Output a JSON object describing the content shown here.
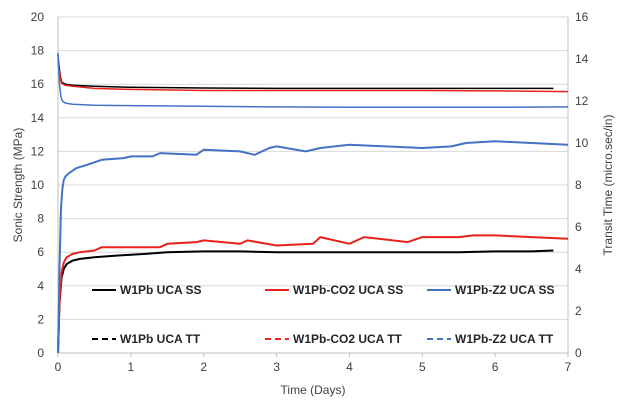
{
  "chart_data": {
    "type": "line",
    "title": "",
    "xlabel": "Time (Days)",
    "ylabel": "Sonic Strength (MPa)",
    "y2label": "Transit Time (micro.sec/in)",
    "xlim": [
      0,
      7
    ],
    "ylim": [
      0,
      20
    ],
    "y2lim": [
      0,
      16
    ],
    "x_ticks": [
      0,
      1,
      2,
      3,
      4,
      5,
      6,
      7
    ],
    "y_ticks": [
      0,
      2,
      4,
      6,
      8,
      10,
      12,
      14,
      16,
      18,
      20
    ],
    "y2_ticks": [
      0,
      2,
      4,
      6,
      8,
      10,
      12,
      14,
      16
    ],
    "grid": "horizontal",
    "legend_position": "bottom-inside",
    "series": [
      {
        "name": "W1Pb UCA SS",
        "axis": "left",
        "color": "#000000",
        "dash": "solid",
        "x": [
          0,
          0.02,
          0.05,
          0.08,
          0.12,
          0.2,
          0.3,
          0.5,
          0.8,
          1.0,
          1.2,
          1.5,
          2.0,
          2.5,
          3.0,
          3.5,
          4.0,
          4.5,
          5.0,
          5.5,
          6.0,
          6.5,
          6.8
        ],
        "y": [
          0,
          3.0,
          4.5,
          5.0,
          5.3,
          5.5,
          5.6,
          5.7,
          5.8,
          5.85,
          5.9,
          6.0,
          6.05,
          6.05,
          6.0,
          6.0,
          6.0,
          6.0,
          6.0,
          6.0,
          6.05,
          6.05,
          6.1
        ]
      },
      {
        "name": "W1Pb-CO2 UCA SS",
        "axis": "left",
        "color": "#e8221b",
        "dash": "solid",
        "x": [
          0,
          0.02,
          0.05,
          0.08,
          0.12,
          0.2,
          0.3,
          0.5,
          0.6,
          1.0,
          1.4,
          1.5,
          1.9,
          2.0,
          2.5,
          2.6,
          3.0,
          3.5,
          3.6,
          4.0,
          4.2,
          4.8,
          5.0,
          5.5,
          5.7,
          6.0,
          6.5,
          7.0
        ],
        "y": [
          0,
          3.2,
          4.8,
          5.4,
          5.7,
          5.9,
          6.0,
          6.1,
          6.3,
          6.3,
          6.3,
          6.5,
          6.6,
          6.7,
          6.5,
          6.7,
          6.4,
          6.5,
          6.9,
          6.5,
          6.9,
          6.6,
          6.9,
          6.9,
          7.0,
          7.0,
          6.9,
          6.8
        ]
      },
      {
        "name": "W1Pb-Z2 UCA SS",
        "axis": "left",
        "color": "#4472c4",
        "dash": "solid",
        "x": [
          0,
          0.02,
          0.04,
          0.06,
          0.08,
          0.1,
          0.15,
          0.25,
          0.4,
          0.6,
          0.9,
          1.0,
          1.3,
          1.4,
          1.9,
          2.0,
          2.5,
          2.7,
          2.9,
          3.0,
          3.4,
          3.6,
          4.0,
          4.5,
          5.0,
          5.4,
          5.6,
          6.0,
          6.5,
          7.0
        ],
        "y": [
          0,
          5.0,
          8.5,
          9.8,
          10.3,
          10.5,
          10.7,
          11.0,
          11.2,
          11.5,
          11.6,
          11.7,
          11.7,
          11.9,
          11.8,
          12.1,
          12.0,
          11.8,
          12.2,
          12.3,
          12.0,
          12.2,
          12.4,
          12.3,
          12.2,
          12.3,
          12.5,
          12.6,
          12.5,
          12.4
        ]
      },
      {
        "name": "W1Pb UCA TT",
        "axis": "right",
        "color": "#000000",
        "dash": "dashed",
        "x": [
          0,
          0.01,
          0.03,
          0.05,
          0.1,
          0.2,
          0.5,
          1.0,
          2.0,
          3.0,
          4.0,
          5.0,
          6.0,
          6.8
        ],
        "y": [
          14.2,
          13.8,
          13.2,
          12.9,
          12.8,
          12.75,
          12.7,
          12.65,
          12.62,
          12.6,
          12.6,
          12.6,
          12.6,
          12.6
        ]
      },
      {
        "name": "W1Pb-CO2 UCA TT",
        "axis": "right",
        "color": "#e8221b",
        "dash": "dashed",
        "x": [
          0,
          0.01,
          0.03,
          0.05,
          0.1,
          0.2,
          0.5,
          1.0,
          2.0,
          3.0,
          4.0,
          5.0,
          6.0,
          7.0
        ],
        "y": [
          14.0,
          13.6,
          13.1,
          12.85,
          12.75,
          12.7,
          12.6,
          12.55,
          12.5,
          12.5,
          12.5,
          12.5,
          12.48,
          12.45
        ]
      },
      {
        "name": "W1Pb-Z2 UCA TT",
        "axis": "right",
        "color": "#4472c4",
        "dash": "dashed",
        "x": [
          0,
          0.01,
          0.02,
          0.04,
          0.06,
          0.1,
          0.2,
          0.5,
          1.0,
          2.0,
          3.0,
          4.0,
          5.0,
          6.0,
          7.0
        ],
        "y": [
          14.3,
          13.6,
          12.8,
          12.2,
          12.0,
          11.9,
          11.85,
          11.8,
          11.78,
          11.75,
          11.72,
          11.7,
          11.7,
          11.7,
          11.72
        ]
      }
    ]
  }
}
